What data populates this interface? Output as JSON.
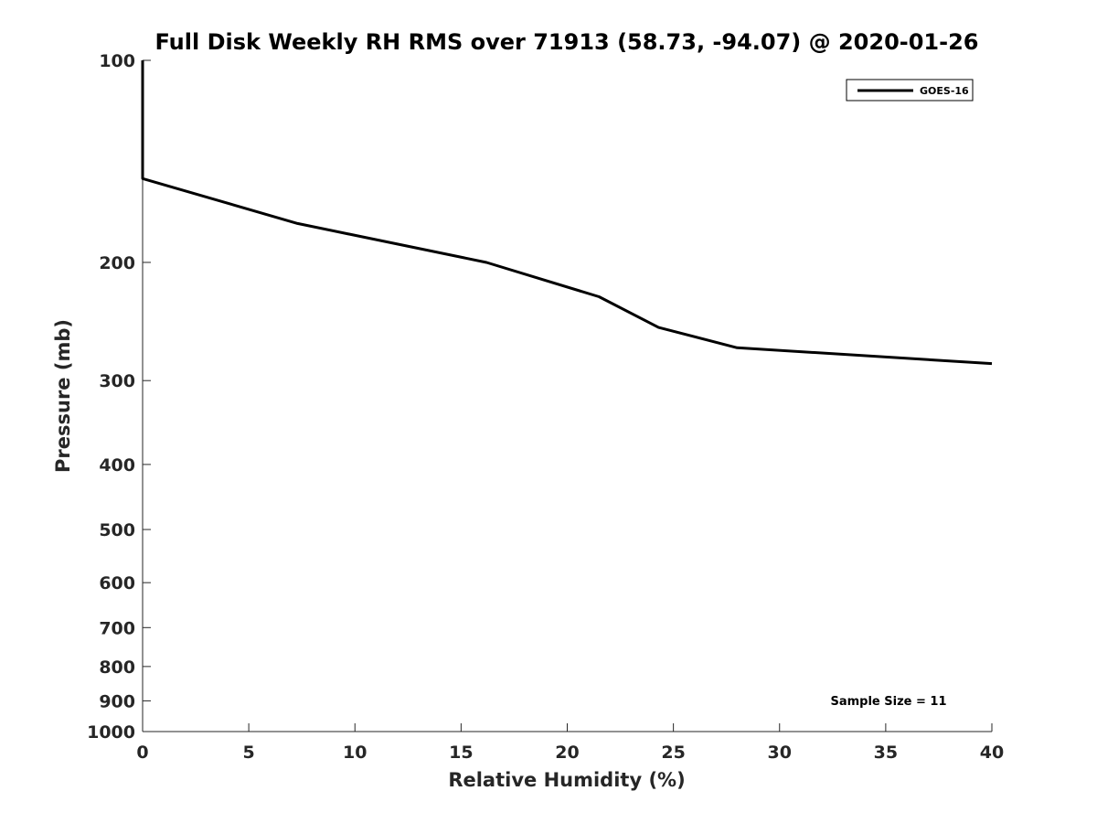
{
  "chart_data": {
    "type": "line",
    "title": "Full Disk Weekly RH RMS over 71913 (58.73, -94.07) @ 2020-01-26",
    "xlabel": "Relative Humidity (%)",
    "ylabel": "Pressure (mb)",
    "xlim": [
      0,
      40
    ],
    "ylim": [
      100,
      1000
    ],
    "y_scale": "log",
    "y_reversed": true,
    "grid": false,
    "legend_position": "top-right",
    "x_ticks": [
      "0",
      "5",
      "10",
      "15",
      "20",
      "25",
      "30",
      "35",
      "40"
    ],
    "y_ticks": [
      "100",
      "200",
      "300",
      "400",
      "500",
      "600",
      "700",
      "800",
      "900",
      "1000"
    ],
    "series": [
      {
        "name": "GOES-16",
        "color": "#000000",
        "x": [
          0,
          0,
          7.3,
          16.2,
          21.5,
          24.3,
          28.0,
          40.0
        ],
        "y": [
          100,
          150,
          175,
          200,
          225,
          250,
          268,
          283
        ]
      }
    ],
    "annotation": "Sample Size = 11"
  }
}
